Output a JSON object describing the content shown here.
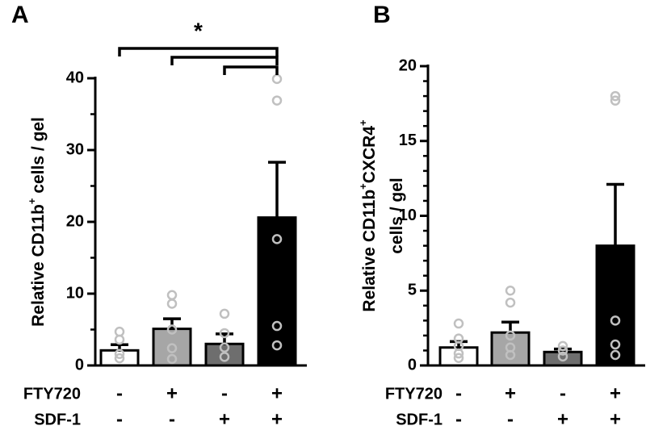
{
  "chart_data": [
    {
      "type": "bar",
      "panel_label": "A",
      "y_label": [
        [
          {
            "text": "Relative CD11b"
          },
          {
            "text": "+",
            "sup": true
          },
          {
            "text": " cells / gel"
          }
        ]
      ],
      "conditions": [
        {
          "name": "FTY720",
          "levels": [
            "-",
            "+",
            "-",
            "+"
          ]
        },
        {
          "name": "SDF-1",
          "levels": [
            "-",
            "-",
            "+",
            "+"
          ]
        }
      ],
      "values": [
        2.1,
        5.1,
        3.0,
        20.6
      ],
      "errors": [
        0.8,
        1.4,
        1.4,
        7.7
      ],
      "colors": [
        "#ffffff",
        "#a6a6a6",
        "#6e6e6e",
        "#000000"
      ],
      "points": [
        [
          4.7,
          3.6,
          1.6,
          1.0
        ],
        [
          9.8,
          8.6,
          5.0,
          2.4,
          0.9
        ],
        [
          7.2,
          4.5,
          2.5,
          1.2
        ],
        [
          39.9,
          36.9,
          17.6,
          5.5,
          2.8
        ]
      ],
      "point_color": "#c0c0c0",
      "ylim": [
        0,
        40
      ],
      "yticks": [
        0,
        10,
        20,
        30,
        40
      ],
      "yminorticks": [
        5,
        15,
        25,
        35
      ],
      "brackets": [
        {
          "from": 0,
          "to": 3
        },
        {
          "from": 1,
          "to": 3
        },
        {
          "from": 2,
          "to": 3
        }
      ],
      "significance": "*"
    },
    {
      "type": "bar",
      "panel_label": "B",
      "y_label": [
        [
          {
            "text": "Relative CD11b"
          },
          {
            "text": "+",
            "sup": true
          },
          {
            "text": "CXCR4"
          },
          {
            "text": "+",
            "sup": true
          }
        ],
        [
          {
            "text": "cells / gel"
          }
        ]
      ],
      "conditions": [
        {
          "name": "FTY720",
          "levels": [
            "-",
            "+",
            "-",
            "+"
          ]
        },
        {
          "name": "SDF-1",
          "levels": [
            "-",
            "-",
            "+",
            "+"
          ]
        }
      ],
      "values": [
        1.2,
        2.2,
        0.9,
        8.0
      ],
      "errors": [
        0.4,
        0.7,
        0.2,
        4.1
      ],
      "colors": [
        "#ffffff",
        "#a6a6a6",
        "#6e6e6e",
        "#000000"
      ],
      "points": [
        [
          2.8,
          1.8,
          1.3,
          0.8,
          0.5
        ],
        [
          5.0,
          4.2,
          2.0,
          1.2,
          0.7
        ],
        [
          1.3,
          1.0,
          0.6
        ],
        [
          18.0,
          17.7,
          3.0,
          1.4,
          0.7
        ]
      ],
      "point_color": "#c0c0c0",
      "ylim": [
        0,
        20
      ],
      "yticks": [
        0,
        5,
        10,
        15,
        20
      ],
      "yminorticks": [
        1,
        2,
        3,
        4,
        6,
        7,
        8,
        9,
        11,
        12,
        13,
        14,
        16,
        17,
        18,
        19
      ]
    }
  ]
}
